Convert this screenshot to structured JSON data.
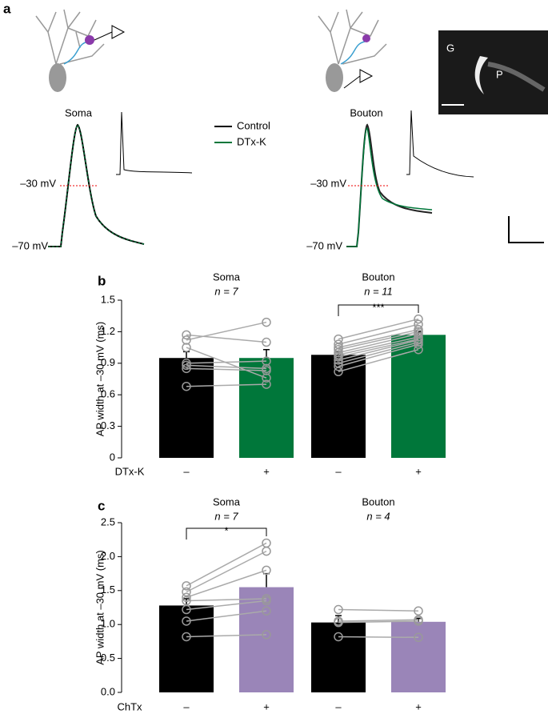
{
  "panel_a": {
    "label": "a",
    "soma_title": "Soma",
    "bouton_title": "Bouton",
    "legend": [
      {
        "name": "Control",
        "color": "#000000"
      },
      {
        "name": "DTx-K",
        "color": "#00773a"
      }
    ],
    "level_30": "–30 mV",
    "level_70": "–70 mV",
    "image_g": "G",
    "image_p": "P"
  },
  "chart_data": [
    {
      "type": "bar",
      "panel": "b",
      "ylabel": "AP width at –30 mV (ms)",
      "ylim": [
        0,
        1.5
      ],
      "yticks": [
        0,
        0.3,
        0.6,
        0.9,
        1.2,
        1.5
      ],
      "condition": "DTx-K",
      "categories": [
        "–",
        "+",
        "–",
        "+"
      ],
      "groups": [
        "Soma",
        "Bouton"
      ],
      "group_n": [
        "n = 7",
        "n = 11"
      ],
      "values": [
        0.95,
        0.95,
        0.98,
        1.17
      ],
      "errors": [
        0.06,
        0.08,
        0.03,
        0.03
      ],
      "colors": [
        "#000000",
        "#00773a",
        "#000000",
        "#00773a"
      ],
      "paired": [
        {
          "before": [
            1.17,
            1.12,
            1.05,
            0.9,
            0.88,
            0.85,
            0.68
          ],
          "after": [
            1.1,
            1.29,
            0.76,
            0.92,
            0.85,
            0.83,
            0.7
          ]
        },
        {
          "before": [
            1.13,
            1.08,
            1.05,
            1.03,
            1.0,
            0.98,
            0.96,
            0.93,
            0.9,
            0.87,
            0.82
          ],
          "after": [
            1.32,
            1.27,
            1.22,
            1.2,
            1.18,
            1.15,
            1.13,
            1.12,
            1.1,
            1.08,
            1.03
          ]
        }
      ],
      "annotation": "***"
    },
    {
      "type": "bar",
      "panel": "c",
      "ylabel": "AP width at –30 mV (ms)",
      "ylim": [
        0,
        2.5
      ],
      "yticks": [
        {
          "value": 0,
          "label": "0.0"
        },
        0.5,
        {
          "value": 1,
          "label": "1.0"
        },
        1.5,
        {
          "value": 2,
          "label": "2.0"
        },
        2.5
      ],
      "condition": "ChTx",
      "categories": [
        "–",
        "+",
        "–",
        "+"
      ],
      "groups": [
        "Soma",
        "Bouton"
      ],
      "group_n": [
        "n = 7",
        "n = 4"
      ],
      "values": [
        1.28,
        1.55,
        1.03,
        1.04
      ],
      "errors": [
        0.1,
        0.2,
        0.1,
        0.05
      ],
      "colors": [
        "#000000",
        "#9a85b8",
        "#000000",
        "#9a85b8"
      ],
      "paired": [
        {
          "before": [
            1.57,
            1.48,
            1.4,
            1.35,
            1.22,
            1.05,
            0.82
          ],
          "after": [
            2.2,
            2.08,
            1.8,
            1.38,
            1.35,
            1.2,
            0.85
          ]
        },
        {
          "before": [
            1.22,
            1.05,
            1.03,
            0.82
          ],
          "after": [
            1.2,
            1.07,
            1.05,
            0.81
          ]
        }
      ],
      "annotation": "*"
    }
  ]
}
